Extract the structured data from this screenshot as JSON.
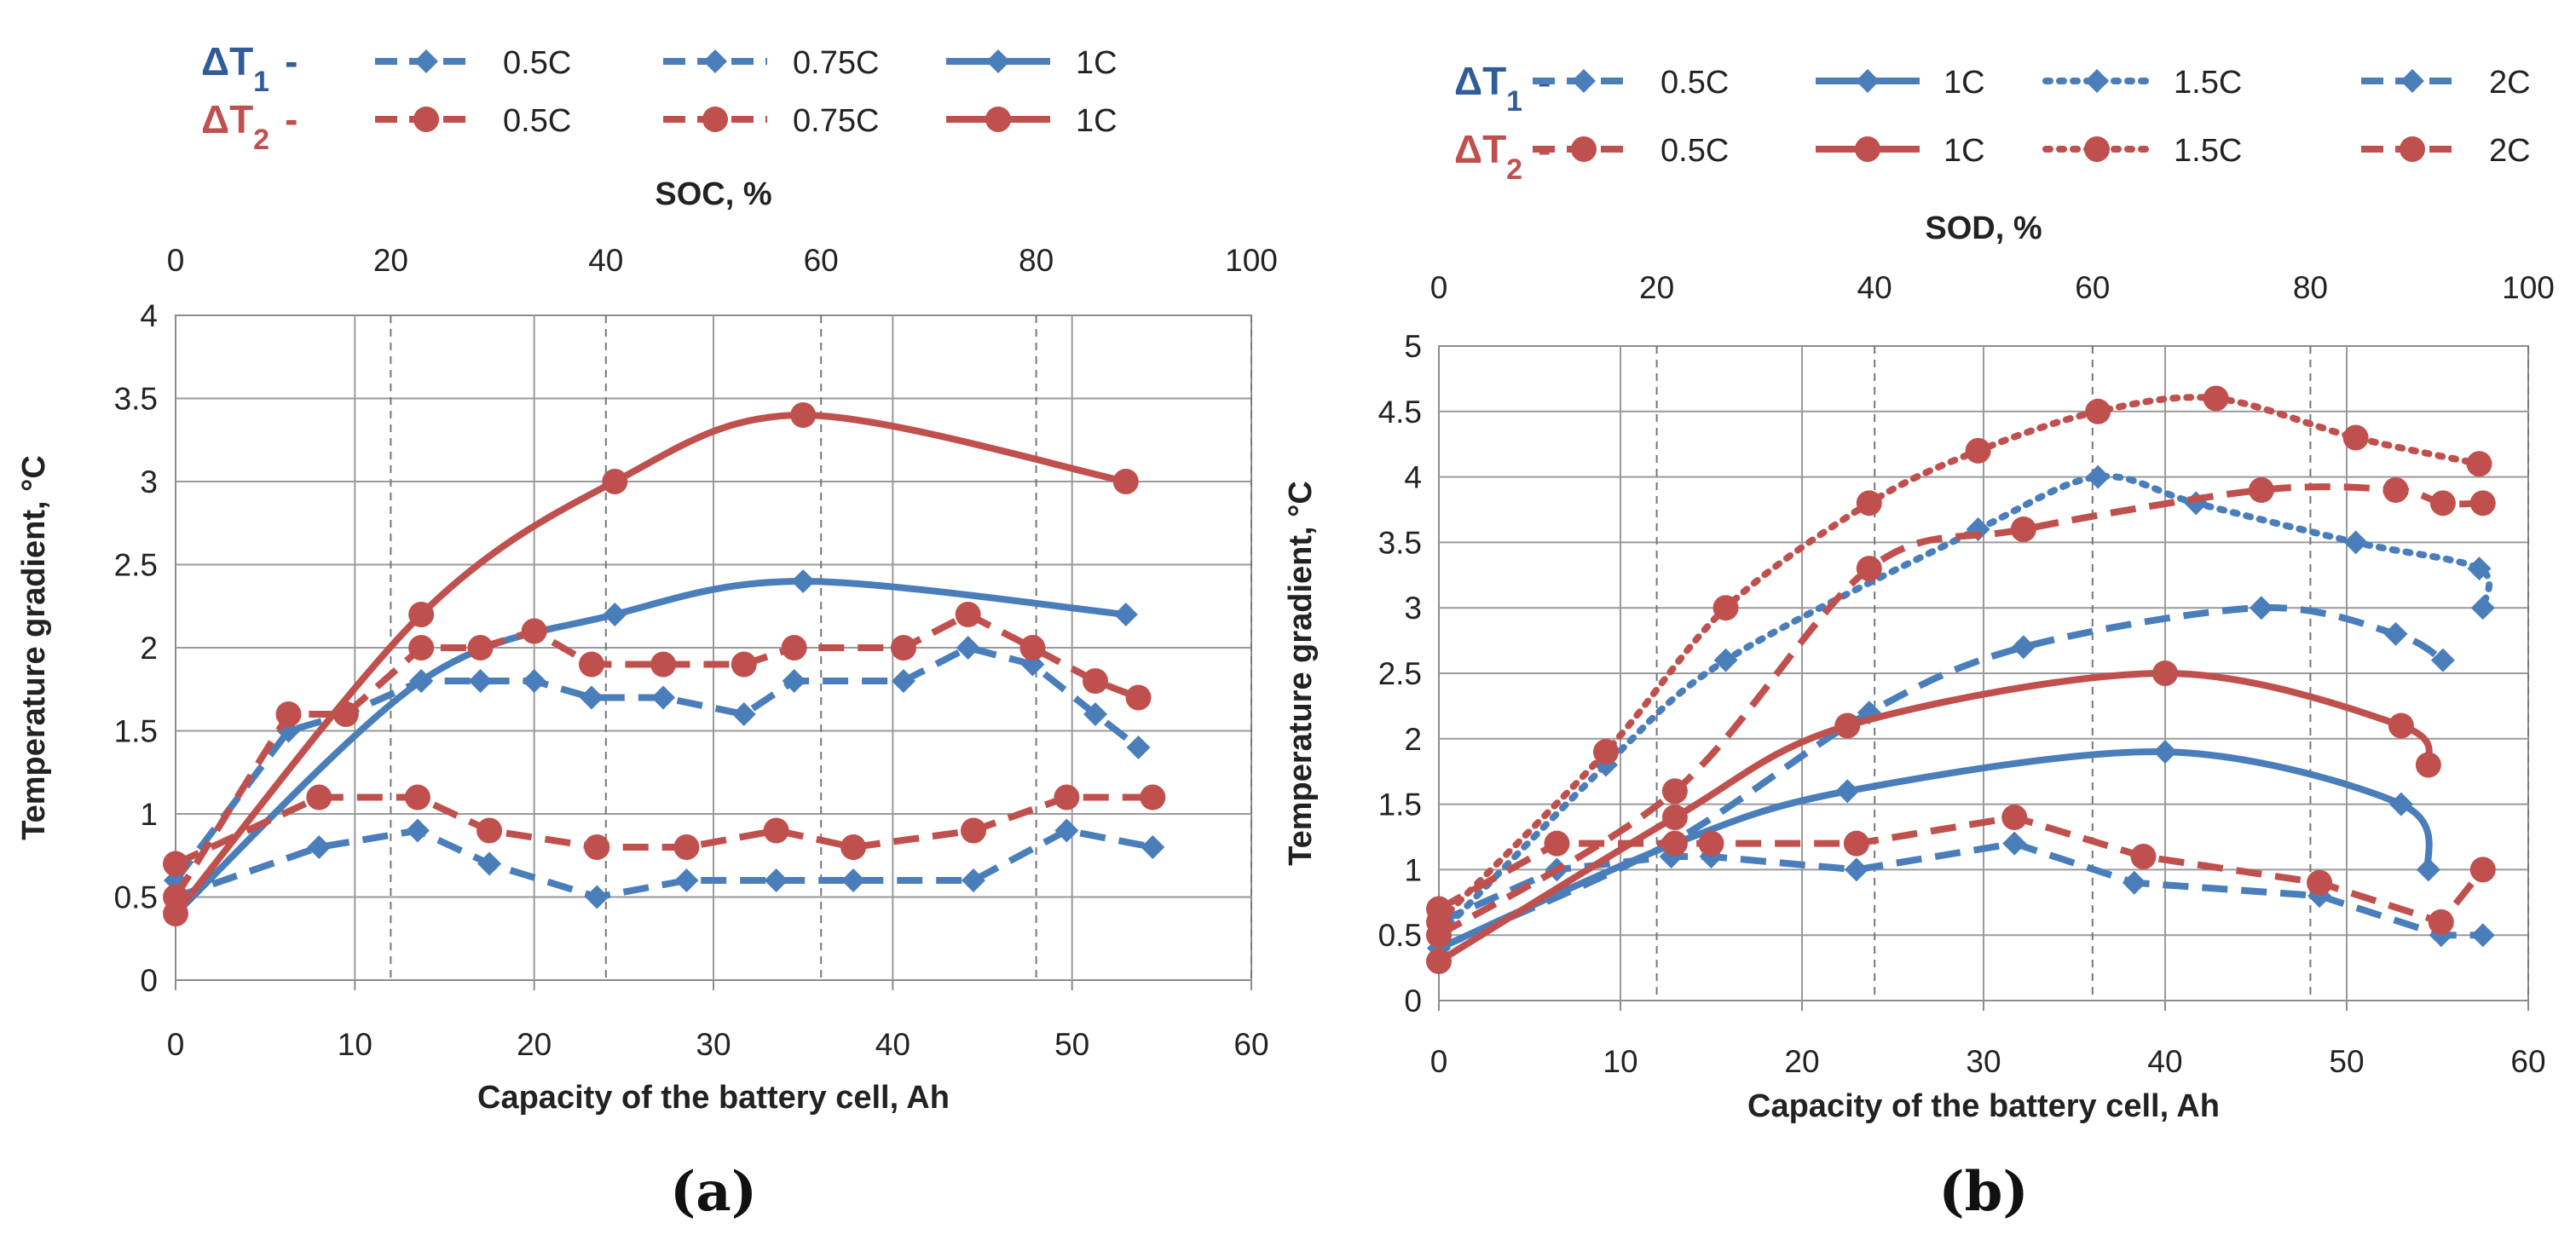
{
  "chart_data": [
    {
      "type": "line",
      "panel_label": "(a)",
      "xlabel": "Capacity of the battery cell, Ah",
      "x2label": "SOC, %",
      "ylabel": "Temperature gradient, °C",
      "xlim": [
        0,
        60
      ],
      "x_ticks": [
        "0",
        "10",
        "20",
        "30",
        "40",
        "50",
        "60"
      ],
      "x2lim": [
        0,
        100
      ],
      "x2_ticks": [
        "0",
        "20",
        "40",
        "60",
        "80",
        "100"
      ],
      "ylim": [
        0,
        4
      ],
      "y_ticks": [
        "0",
        "0.5",
        "1",
        "1.5",
        "2",
        "2.5",
        "3",
        "3.5",
        "4"
      ],
      "grid": "major vertical solid; secondary-axis dashed verticals; horizontal solid",
      "legend": {
        "position": "top",
        "dt1": "ΔT",
        "dt1_sub": "1",
        "dt2": "ΔT",
        "dt2_sub": "2",
        "entries": [
          "0.5C",
          "0.75C",
          "1C"
        ]
      },
      "series": [
        {
          "name": "ΔT1 0.5C",
          "color": "#4a7ebb",
          "style": "dashed",
          "marker": "diamond",
          "smooth": false,
          "x": [
            0,
            8,
            13.5,
            17.5,
            23.5,
            28.5,
            33.5,
            37.8,
            44.5,
            49.7,
            54.5
          ],
          "y": [
            0.5,
            0.8,
            0.9,
            0.7,
            0.5,
            0.6,
            0.6,
            0.6,
            0.6,
            0.9,
            0.8
          ]
        },
        {
          "name": "ΔT1 0.75C",
          "color": "#4a7ebb",
          "style": "dashed",
          "marker": "diamond",
          "smooth": false,
          "x": [
            0,
            6.3,
            9.5,
            13.7,
            17,
            20,
            23.2,
            27.2,
            31.7,
            34.5,
            40.6,
            44.2,
            47.8,
            51.3,
            53.7
          ],
          "y": [
            0.6,
            1.5,
            1.6,
            1.8,
            1.8,
            1.8,
            1.7,
            1.7,
            1.6,
            1.8,
            1.8,
            2.0,
            1.9,
            1.6,
            1.4
          ]
        },
        {
          "name": "ΔT1 1C",
          "color": "#4a7ebb",
          "style": "solid",
          "marker": "diamond",
          "smooth": true,
          "x": [
            0,
            13.7,
            24.5,
            35,
            53
          ],
          "y": [
            0.4,
            1.8,
            2.2,
            2.4,
            2.2
          ]
        },
        {
          "name": "ΔT2 0.5C",
          "color": "#c0504d",
          "style": "dashed",
          "marker": "circle",
          "smooth": false,
          "x": [
            0,
            8,
            13.5,
            17.5,
            23.5,
            28.5,
            33.5,
            37.8,
            44.5,
            49.7,
            54.5
          ],
          "y": [
            0.7,
            1.1,
            1.1,
            0.9,
            0.8,
            0.8,
            0.9,
            0.8,
            0.9,
            1.1,
            1.1
          ]
        },
        {
          "name": "ΔT2 0.75C",
          "color": "#c0504d",
          "style": "dashed",
          "marker": "circle",
          "smooth": false,
          "x": [
            0,
            6.3,
            9.5,
            13.7,
            17,
            20,
            23.2,
            27.2,
            31.7,
            34.5,
            40.6,
            44.2,
            47.8,
            51.3,
            53.7
          ],
          "y": [
            0.5,
            1.6,
            1.6,
            2.0,
            2.0,
            2.1,
            1.9,
            1.9,
            1.9,
            2.0,
            2.0,
            2.2,
            2.0,
            1.8,
            1.7
          ]
        },
        {
          "name": "ΔT2 1C",
          "color": "#c0504d",
          "style": "solid",
          "marker": "circle",
          "smooth": true,
          "x": [
            0,
            13.7,
            24.5,
            35,
            53
          ],
          "y": [
            0.4,
            2.2,
            3.0,
            3.4,
            3.0
          ]
        }
      ]
    },
    {
      "type": "line",
      "panel_label": "(b)",
      "xlabel": "Capacity of the battery cell, Ah",
      "x2label": "SOD, %",
      "ylabel": "Temperature gradient, °C",
      "xlim": [
        0,
        60
      ],
      "x_ticks": [
        "0",
        "10",
        "20",
        "30",
        "40",
        "50",
        "60"
      ],
      "x2lim": [
        0,
        100
      ],
      "x2_ticks": [
        "0",
        "20",
        "40",
        "60",
        "80",
        "100"
      ],
      "ylim": [
        0,
        5
      ],
      "y_ticks": [
        "0",
        "0.5",
        "1",
        "1.5",
        "2",
        "2.5",
        "3",
        "3.5",
        "4",
        "4.5",
        "5"
      ],
      "grid": "major vertical solid; secondary-axis dashed verticals; horizontal solid",
      "legend": {
        "position": "top",
        "dt1": "ΔT",
        "dt1_sub": "1",
        "dt2": "ΔT",
        "dt2_sub": "2",
        "entries": [
          "0.5C",
          "1C",
          "1.5C",
          "2C"
        ]
      },
      "series": [
        {
          "name": "ΔT1 0.5C",
          "color": "#4a7ebb",
          "style": "dashed",
          "marker": "diamond",
          "smooth": false,
          "x": [
            0,
            6.5,
            12.8,
            15,
            23,
            31.7,
            38.3,
            48.5,
            55.2,
            57.5
          ],
          "y": [
            0.6,
            1.0,
            1.1,
            1.1,
            1.0,
            1.2,
            0.9,
            0.8,
            0.5,
            0.5
          ]
        },
        {
          "name": "ΔT1 1C",
          "color": "#4a7ebb",
          "style": "solid",
          "marker": "diamond",
          "smooth": true,
          "x": [
            0,
            13,
            22.5,
            40,
            53,
            54.5
          ],
          "y": [
            0.4,
            1.2,
            1.6,
            1.9,
            1.5,
            1.0
          ]
        },
        {
          "name": "ΔT1 1.5C",
          "color": "#4a7ebb",
          "style": "dotted",
          "marker": "diamond",
          "smooth": true,
          "x": [
            0,
            9.2,
            15.8,
            29.7,
            36.3,
            41.7,
            50.5,
            57.3,
            57.5
          ],
          "y": [
            0.5,
            1.8,
            2.6,
            3.6,
            4.0,
            3.8,
            3.5,
            3.3,
            3.0
          ]
        },
        {
          "name": "ΔT1 2C",
          "color": "#4a7ebb",
          "style": "dashed",
          "marker": "diamond",
          "smooth": true,
          "x": [
            0,
            12.7,
            23.7,
            32.2,
            45.3,
            52.7,
            55.3
          ],
          "y": [
            0.4,
            1.2,
            2.2,
            2.7,
            3.0,
            2.8,
            2.6
          ]
        },
        {
          "name": "ΔT2 0.5C",
          "color": "#c0504d",
          "style": "dashed",
          "marker": "circle",
          "smooth": false,
          "x": [
            0,
            6.5,
            13,
            15,
            23,
            31.7,
            38.8,
            48.5,
            55.2,
            57.5
          ],
          "y": [
            0.7,
            1.2,
            1.2,
            1.2,
            1.2,
            1.4,
            1.1,
            0.9,
            0.6,
            1.0
          ]
        },
        {
          "name": "ΔT2 1C",
          "color": "#c0504d",
          "style": "solid",
          "marker": "circle",
          "smooth": true,
          "x": [
            0,
            13,
            22.5,
            40,
            53,
            54.5
          ],
          "y": [
            0.3,
            1.4,
            2.1,
            2.5,
            2.1,
            1.8
          ]
        },
        {
          "name": "ΔT2 1.5C",
          "color": "#c0504d",
          "style": "dotted",
          "marker": "circle",
          "smooth": true,
          "x": [
            0,
            9.2,
            15.8,
            23.7,
            29.7,
            36.3,
            42.8,
            50.5,
            57.3
          ],
          "y": [
            0.6,
            1.9,
            3.0,
            3.8,
            4.2,
            4.5,
            4.6,
            4.3,
            4.1
          ]
        },
        {
          "name": "ΔT2 2C",
          "color": "#c0504d",
          "style": "dashed",
          "marker": "circle",
          "smooth": true,
          "x": [
            0,
            13,
            23.7,
            32.2,
            45.3,
            52.7,
            55.3,
            57.5
          ],
          "y": [
            0.5,
            1.6,
            3.3,
            3.6,
            3.9,
            3.9,
            3.8,
            3.8
          ]
        }
      ]
    }
  ]
}
